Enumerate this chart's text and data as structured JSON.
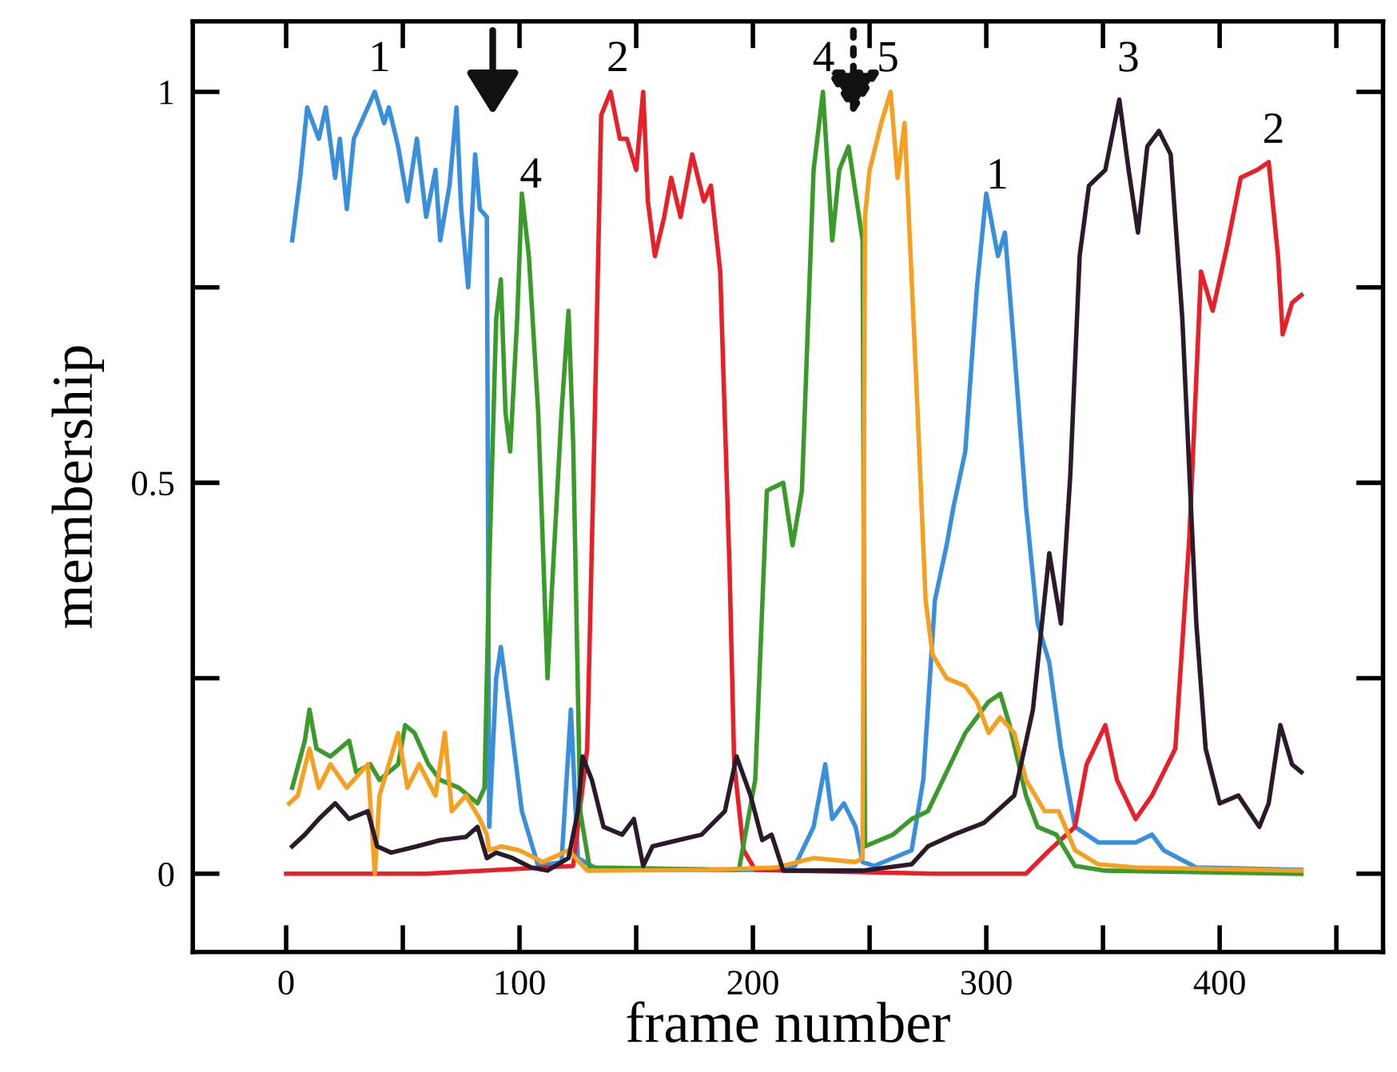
{
  "chart_data": {
    "type": "line",
    "xlabel": "frame number",
    "ylabel": "membership",
    "xlim": [
      -40,
      470
    ],
    "ylim": [
      -0.1,
      1.09
    ],
    "xticks": [
      0,
      100,
      200,
      300,
      400
    ],
    "yticks": [
      0,
      0.5,
      1
    ],
    "grid": false,
    "legend": false,
    "marker": "none",
    "line_style": "solid",
    "annotations": [
      "1",
      "4",
      "2",
      "4",
      "5",
      "1",
      "3",
      "2"
    ],
    "series": [
      {
        "color": "#3a8fdc",
        "x": [
          2.6,
          6,
          9,
          14,
          17,
          21,
          23,
          26,
          29,
          32,
          38,
          42,
          44,
          48,
          52,
          56,
          60,
          64,
          66,
          70,
          73,
          75,
          78,
          81,
          83,
          86,
          86.5,
          87,
          90,
          92,
          96,
          101,
          108,
          118,
          122,
          125,
          134,
          160,
          200,
          218,
          226,
          231,
          234,
          239,
          244,
          247,
          252,
          268,
          273,
          278,
          283,
          286,
          291,
          296,
          300,
          305,
          308,
          312,
          317,
          322,
          327,
          332,
          338,
          348,
          364,
          371,
          376,
          390,
          435
        ],
        "values": [
          0.81,
          0.89,
          0.98,
          0.94,
          0.98,
          0.89,
          0.94,
          0.85,
          0.94,
          0.96,
          1.0,
          0.96,
          0.98,
          0.93,
          0.86,
          0.94,
          0.84,
          0.9,
          0.81,
          0.88,
          0.98,
          0.85,
          0.75,
          0.92,
          0.85,
          0.84,
          0.47,
          0.06,
          0.25,
          0.29,
          0.2,
          0.08,
          0.01,
          0.015,
          0.21,
          0.02,
          0.005,
          0.005,
          0.005,
          0.01,
          0.06,
          0.14,
          0.07,
          0.09,
          0.06,
          0.015,
          0.01,
          0.03,
          0.12,
          0.35,
          0.42,
          0.47,
          0.54,
          0.75,
          0.87,
          0.79,
          0.82,
          0.67,
          0.47,
          0.32,
          0.27,
          0.16,
          0.06,
          0.04,
          0.04,
          0.05,
          0.03,
          0.008,
          0.005
        ]
      },
      {
        "color": "#e8202a",
        "x": [
          0,
          60,
          123,
          129,
          132,
          135,
          139,
          143,
          146,
          150,
          153,
          155,
          158,
          162,
          165,
          169,
          174,
          179,
          182,
          186,
          190,
          192,
          196,
          201,
          278,
          317,
          327,
          338,
          343,
          351,
          356,
          364,
          371,
          381,
          387,
          392,
          397,
          403,
          409,
          416,
          421,
          425,
          427,
          431,
          435
        ],
        "values": [
          0,
          0,
          0.01,
          0.16,
          0.55,
          0.97,
          1.0,
          0.94,
          0.94,
          0.9,
          1.0,
          0.86,
          0.79,
          0.84,
          0.89,
          0.84,
          0.92,
          0.86,
          0.88,
          0.77,
          0.39,
          0.14,
          0.03,
          0.005,
          0,
          0,
          0.03,
          0.06,
          0.14,
          0.19,
          0.12,
          0.07,
          0.1,
          0.16,
          0.43,
          0.77,
          0.72,
          0.8,
          0.89,
          0.9,
          0.91,
          0.79,
          0.69,
          0.73,
          0.74
        ]
      },
      {
        "color": "#3a9a2a",
        "x": [
          2.6,
          8,
          10,
          13,
          19,
          27,
          30,
          36,
          40,
          48,
          51,
          55,
          61,
          66,
          74,
          82,
          85,
          87,
          90,
          92,
          94,
          96,
          99,
          101,
          104,
          108,
          112,
          114,
          118,
          121,
          123,
          126,
          130,
          194,
          201,
          206,
          213,
          217,
          221,
          226,
          230,
          234,
          237,
          241,
          247,
          248,
          260,
          268,
          275,
          283,
          291,
          296,
          301,
          306,
          310,
          317,
          322,
          330,
          338,
          351,
          435
        ],
        "values": [
          0.11,
          0.17,
          0.21,
          0.16,
          0.15,
          0.17,
          0.13,
          0.14,
          0.12,
          0.14,
          0.19,
          0.18,
          0.14,
          0.12,
          0.11,
          0.09,
          0.11,
          0.39,
          0.71,
          0.76,
          0.59,
          0.54,
          0.71,
          0.87,
          0.79,
          0.59,
          0.25,
          0.37,
          0.59,
          0.72,
          0.55,
          0.08,
          0.008,
          0.005,
          0.12,
          0.49,
          0.5,
          0.42,
          0.49,
          0.9,
          1.0,
          0.81,
          0.9,
          0.93,
          0.81,
          0.035,
          0.05,
          0.07,
          0.08,
          0.13,
          0.18,
          0.2,
          0.22,
          0.23,
          0.19,
          0.1,
          0.06,
          0.05,
          0.01,
          0.004,
          0
        ]
      },
      {
        "color": "#f5a020",
        "x": [
          1.3,
          5,
          10,
          14,
          19,
          26,
          35,
          38,
          40,
          48,
          52,
          57,
          64,
          68,
          71,
          77,
          83,
          86,
          87,
          92,
          100,
          110,
          121,
          129,
          180,
          210,
          226,
          244,
          247,
          248,
          250,
          255,
          259,
          262,
          265,
          270,
          274,
          277,
          283,
          291,
          296,
          301,
          306,
          312,
          317,
          325,
          331,
          338,
          348,
          364,
          435
        ],
        "values": [
          0.09,
          0.1,
          0.16,
          0.11,
          0.14,
          0.11,
          0.14,
          0.0,
          0.1,
          0.18,
          0.11,
          0.14,
          0.1,
          0.18,
          0.08,
          0.1,
          0.07,
          0.05,
          0.03,
          0.035,
          0.03,
          0.015,
          0.03,
          0.004,
          0.005,
          0.008,
          0.02,
          0.015,
          0.02,
          0.84,
          0.9,
          0.96,
          1.0,
          0.89,
          0.96,
          0.63,
          0.35,
          0.28,
          0.25,
          0.24,
          0.22,
          0.18,
          0.2,
          0.18,
          0.12,
          0.08,
          0.08,
          0.03,
          0.012,
          0.008,
          0.004
        ]
      },
      {
        "color": "#2a1a2a",
        "x": [
          2.6,
          8,
          14,
          21,
          27,
          35,
          39,
          45,
          56,
          66,
          77,
          82,
          86,
          90,
          97,
          105,
          112,
          121,
          125,
          127,
          131,
          136,
          144,
          149,
          153,
          157,
          168,
          178,
          188,
          193,
          199,
          204,
          208,
          213,
          247,
          268,
          275,
          286,
          299,
          312,
          320,
          327,
          332,
          336,
          340,
          344,
          351,
          357,
          361,
          365,
          369,
          374,
          379,
          384,
          390,
          394,
          400,
          408,
          417,
          421,
          426,
          431,
          435
        ],
        "values": [
          0.035,
          0.05,
          0.07,
          0.09,
          0.07,
          0.08,
          0.035,
          0.027,
          0.035,
          0.043,
          0.047,
          0.06,
          0.02,
          0.027,
          0.02,
          0.008,
          0.004,
          0.02,
          0.08,
          0.15,
          0.12,
          0.06,
          0.05,
          0.07,
          0.01,
          0.035,
          0.043,
          0.05,
          0.08,
          0.15,
          0.1,
          0.043,
          0.05,
          0.004,
          0.004,
          0.012,
          0.035,
          0.05,
          0.065,
          0.1,
          0.21,
          0.41,
          0.32,
          0.51,
          0.79,
          0.88,
          0.9,
          0.99,
          0.9,
          0.82,
          0.93,
          0.95,
          0.92,
          0.71,
          0.32,
          0.16,
          0.09,
          0.1,
          0.06,
          0.09,
          0.19,
          0.14,
          0.13
        ]
      }
    ]
  }
}
